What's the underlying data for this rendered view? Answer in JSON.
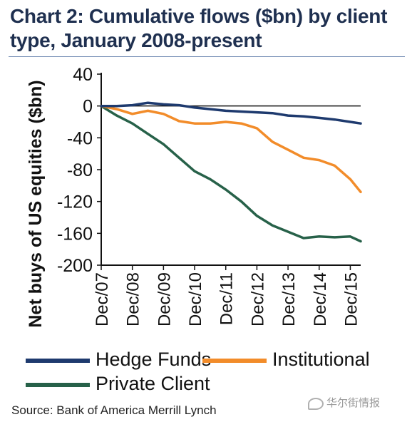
{
  "header": {
    "title": "Chart 2: Cumulative flows ($bn) by client type, January 2008-present"
  },
  "chart_data": {
    "type": "line",
    "title": "Chart 2: Cumulative flows ($bn) by client type, January 2008-present",
    "xlabel": "",
    "ylabel": "Net buys of US equities ($bn)",
    "ylim": [
      -200,
      40
    ],
    "yticks": [
      40,
      0,
      -40,
      -80,
      -120,
      -160,
      -200
    ],
    "xlim": [
      "2007-12",
      "2016-04"
    ],
    "xticks": [
      "Dec/07",
      "Dec/08",
      "Dec/09",
      "Dec/10",
      "Dec/11",
      "Dec/12",
      "Dec/13",
      "Dec/14",
      "Dec/15"
    ],
    "grid": false,
    "legend_position": "bottom",
    "series": [
      {
        "name": "Hedge Funds",
        "color": "#1e3a6e",
        "x": [
          "2007-12",
          "2008-06",
          "2008-12",
          "2009-06",
          "2009-12",
          "2010-06",
          "2010-12",
          "2011-06",
          "2011-12",
          "2012-06",
          "2012-12",
          "2013-06",
          "2013-12",
          "2014-06",
          "2014-12",
          "2015-06",
          "2015-12",
          "2016-04"
        ],
        "values": [
          0,
          0,
          1,
          4,
          2,
          1,
          -2,
          -4,
          -6,
          -7,
          -8,
          -9,
          -12,
          -13,
          -15,
          -17,
          -20,
          -22
        ]
      },
      {
        "name": "Institutional",
        "color": "#f28c2a",
        "x": [
          "2007-12",
          "2008-06",
          "2008-12",
          "2009-06",
          "2009-12",
          "2010-06",
          "2010-12",
          "2011-06",
          "2011-12",
          "2012-06",
          "2012-12",
          "2013-06",
          "2013-12",
          "2014-06",
          "2014-12",
          "2015-06",
          "2015-12",
          "2016-04"
        ],
        "values": [
          0,
          -4,
          -10,
          -6,
          -10,
          -19,
          -22,
          -22,
          -20,
          -22,
          -28,
          -45,
          -55,
          -65,
          -68,
          -75,
          -92,
          -108
        ]
      },
      {
        "name": "Private Client",
        "color": "#276149",
        "x": [
          "2007-12",
          "2008-06",
          "2008-12",
          "2009-06",
          "2009-12",
          "2010-06",
          "2010-12",
          "2011-06",
          "2011-12",
          "2012-06",
          "2012-12",
          "2013-06",
          "2013-12",
          "2014-06",
          "2014-12",
          "2015-06",
          "2015-12",
          "2016-04"
        ],
        "values": [
          0,
          -12,
          -22,
          -35,
          -48,
          -65,
          -82,
          -92,
          -105,
          -120,
          -138,
          -150,
          -158,
          -166,
          -164,
          -165,
          -164,
          -170
        ]
      }
    ]
  },
  "source": "Source: Bank of America Merrill Lynch",
  "watermark": "华尔街情报"
}
